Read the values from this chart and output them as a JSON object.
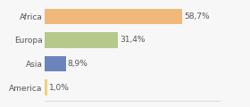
{
  "categories": [
    "Africa",
    "Europa",
    "Asia",
    "America"
  ],
  "values": [
    58.7,
    31.4,
    8.9,
    1.0
  ],
  "labels": [
    "58,7%",
    "31,4%",
    "8,9%",
    "1,0%"
  ],
  "bar_colors": [
    "#f0b87a",
    "#b5c98a",
    "#6b84bc",
    "#f0d080"
  ],
  "background_color": "#f7f7f7",
  "xlim": [
    0,
    75
  ],
  "bar_height": 0.65,
  "ylabel_fontsize": 6.5,
  "label_fontsize": 6.5,
  "label_color": "#555555",
  "spine_color": "#cccccc"
}
